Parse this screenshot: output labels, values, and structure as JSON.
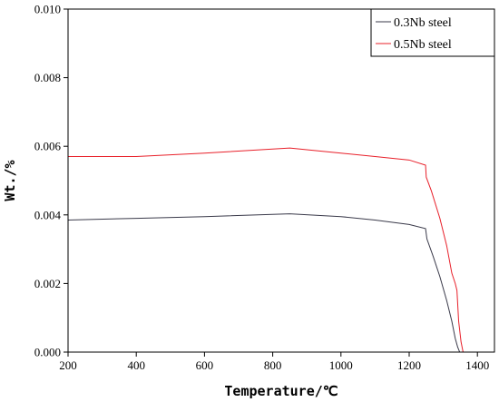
{
  "chart_data": {
    "type": "line",
    "xlabel": "Temperature/℃",
    "ylabel": "Wt./%",
    "xlim": [
      200,
      1450
    ],
    "ylim": [
      0,
      0.01
    ],
    "xticks": [
      200,
      400,
      600,
      800,
      1000,
      1200,
      1400
    ],
    "xtick_labels": [
      "200",
      "400",
      "600",
      "800",
      "1000",
      "1200",
      "1400"
    ],
    "yticks": [
      0,
      0.002,
      0.004,
      0.006,
      0.008,
      0.01
    ],
    "ytick_labels": [
      "0.000",
      "0.002",
      "0.004",
      "0.006",
      "0.008",
      "0.010"
    ],
    "grid": false,
    "legend_position": "top-right",
    "series": [
      {
        "name": "0.3Nb steel",
        "color": "#3a3a4a",
        "x": [
          200,
          400,
          600,
          850,
          1000,
          1100,
          1200,
          1248,
          1252,
          1270,
          1290,
          1310,
          1325,
          1335,
          1342,
          1348
        ],
        "y": [
          0.00385,
          0.0039,
          0.00395,
          0.00403,
          0.00395,
          0.00385,
          0.00372,
          0.0036,
          0.0033,
          0.0028,
          0.0022,
          0.0015,
          0.0009,
          0.0004,
          0.00015,
          0.0
        ]
      },
      {
        "name": "0.5Nb steel",
        "color": "#e8202a",
        "x": [
          200,
          400,
          600,
          850,
          1000,
          1100,
          1200,
          1248,
          1250,
          1265,
          1290,
          1310,
          1325,
          1335,
          1340,
          1345,
          1352,
          1358
        ],
        "y": [
          0.0057,
          0.0057,
          0.0058,
          0.00595,
          0.0058,
          0.0057,
          0.0056,
          0.00545,
          0.0051,
          0.0047,
          0.0039,
          0.0031,
          0.0023,
          0.002,
          0.0018,
          0.0009,
          0.0003,
          0.0
        ]
      }
    ]
  }
}
